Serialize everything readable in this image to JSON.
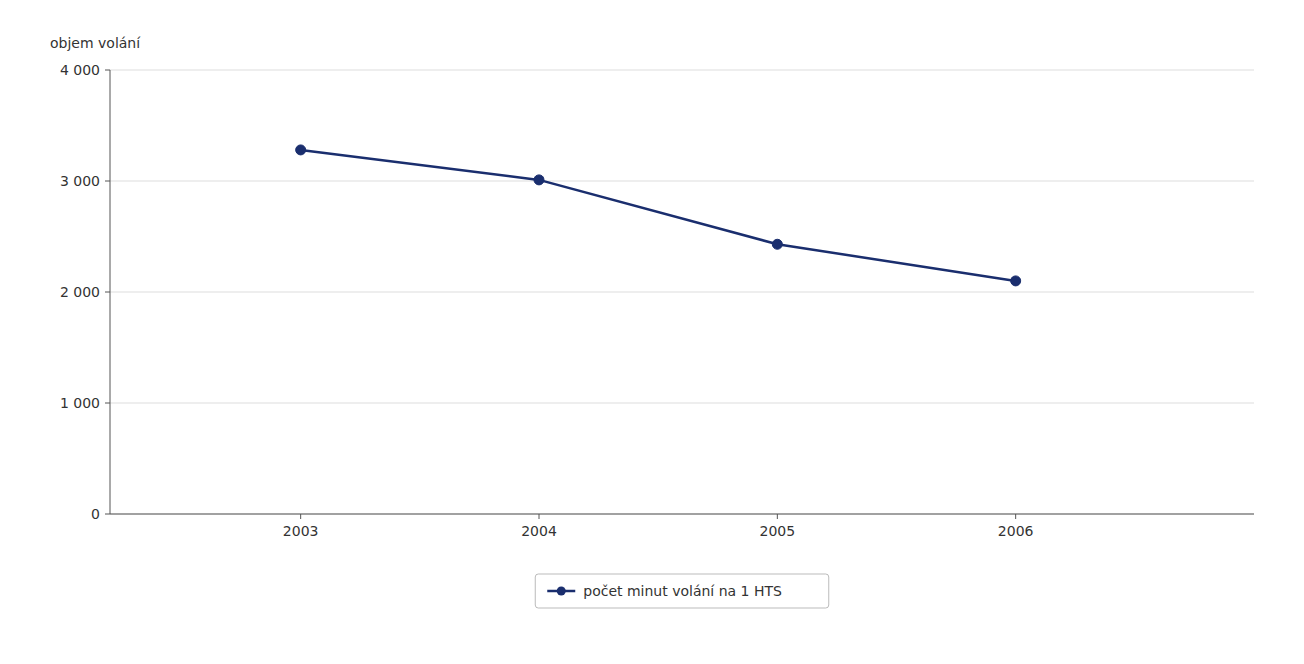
{
  "chart_data": {
    "type": "line",
    "ylabel": "objem volání",
    "x": [
      2003,
      2004,
      2005,
      2006
    ],
    "series": [
      {
        "name": "počet minut volání na 1 HTS",
        "color": "#1a2e6e",
        "marker": "circle",
        "values": [
          3280,
          3010,
          2430,
          2100
        ]
      }
    ],
    "xlim": [
      2002.2,
      2007.0
    ],
    "xticks": [
      2003,
      2004,
      2005,
      2006
    ],
    "ylim": [
      0,
      4000
    ],
    "yticks": [
      0,
      {
        "value": 1000,
        "label": "1 000"
      },
      {
        "value": 2000,
        "label": "2 000"
      },
      {
        "value": 3000,
        "label": "3 000"
      },
      {
        "value": 4000,
        "label": "4 000"
      }
    ],
    "grid": true,
    "legend": "bottom"
  }
}
